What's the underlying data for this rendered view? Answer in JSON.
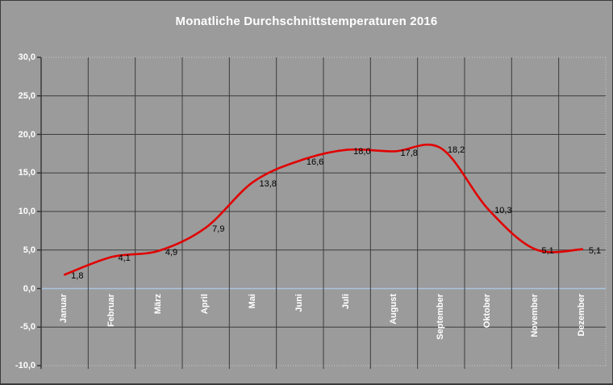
{
  "chart_data": {
    "type": "line",
    "title": "Monatliche Durchschnittstemperaturen 2016",
    "categories": [
      "Januar",
      "Februar",
      "März",
      "April",
      "Mai",
      "Juni",
      "Juli",
      "August",
      "September",
      "Oktober",
      "November",
      "Dezember"
    ],
    "values": [
      1.8,
      4.1,
      4.9,
      7.9,
      13.8,
      16.6,
      18.0,
      17.8,
      18.2,
      10.3,
      5.1,
      5.1
    ],
    "value_labels": [
      "1,8",
      "4,1",
      "4,9",
      "7,9",
      "13,8",
      "16,6",
      "18,0",
      "17,8",
      "18,2",
      "10,3",
      "5,1",
      "5,1"
    ],
    "xlabel": "",
    "ylabel": "",
    "ylim": [
      -10,
      30
    ],
    "y_step": 5,
    "y_tick_labels": [
      "30,0",
      "25,0",
      "20,0",
      "15,0",
      "10,0",
      "5,0",
      "0,0",
      "-5,0",
      "-10,0"
    ],
    "y_tick_values": [
      30,
      25,
      20,
      15,
      10,
      5,
      0,
      -5,
      -10
    ],
    "grid": "on",
    "legend": "none",
    "line_smoothing": "spline"
  },
  "colors": {
    "background": "#9b9b9b",
    "line": "#e10000",
    "gridline": "#3c3c3c",
    "axis_line": "#333333",
    "zero_line": "#a9c4e0",
    "plot_border_dotted": "#c9c9c9",
    "title_text": "#ffffff",
    "axis_text": "#ffffff",
    "data_label_text": "#000000"
  }
}
